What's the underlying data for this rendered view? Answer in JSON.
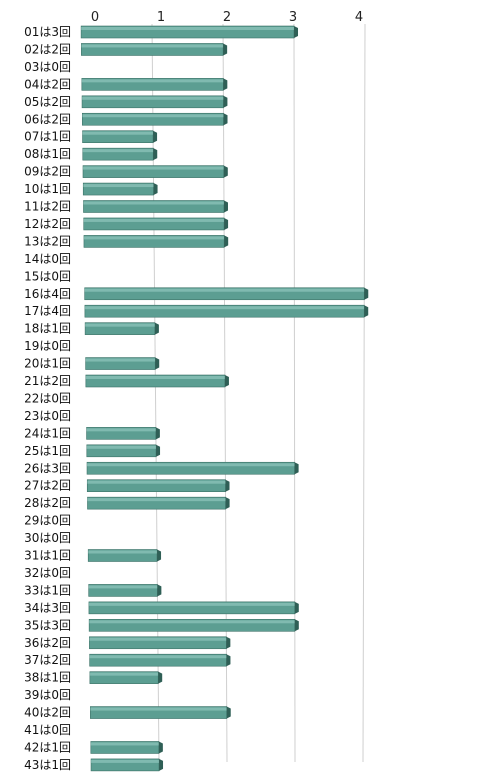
{
  "chart_data": {
    "type": "bar",
    "orientation": "horizontal",
    "style": "3d",
    "bar_color": "#5c9e92",
    "bar_side_color": "#2f5f56",
    "grid": true,
    "xlim": [
      0,
      4
    ],
    "x_ticks": [
      "0",
      "1",
      "2",
      "3",
      "4"
    ],
    "categories": [
      "01は3回",
      "02は2回",
      "03は0回",
      "04は2回",
      "05は2回",
      "06は2回",
      "07は1回",
      "08は1回",
      "09は2回",
      "10は1回",
      "11は2回",
      "12は2回",
      "13は2回",
      "14は0回",
      "15は0回",
      "16は4回",
      "17は4回",
      "18は1回",
      "19は0回",
      "20は1回",
      "21は2回",
      "22は0回",
      "23は0回",
      "24は1回",
      "25は1回",
      "26は3回",
      "27は2回",
      "28は2回",
      "29は0回",
      "30は0回",
      "31は1回",
      "32は0回",
      "33は1回",
      "34は3回",
      "35は3回",
      "36は2回",
      "37は2回",
      "38は1回",
      "39は0回",
      "40は2回",
      "41は0回",
      "42は1回",
      "43は1回"
    ],
    "values": [
      3,
      2,
      0,
      2,
      2,
      2,
      1,
      1,
      2,
      1,
      2,
      2,
      2,
      0,
      0,
      4,
      4,
      1,
      0,
      1,
      2,
      0,
      0,
      1,
      1,
      3,
      2,
      2,
      0,
      0,
      1,
      0,
      1,
      3,
      3,
      2,
      2,
      1,
      0,
      2,
      0,
      1,
      1
    ]
  }
}
